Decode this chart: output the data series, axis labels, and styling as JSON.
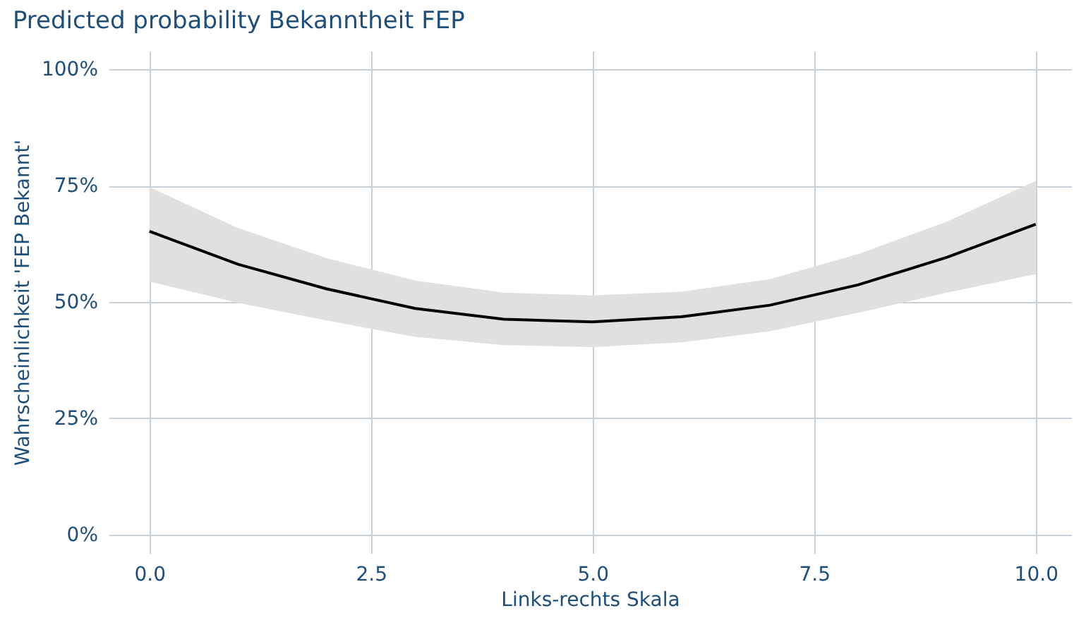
{
  "chart_data": {
    "type": "line",
    "title": "Predicted probability Bekanntheit FEP",
    "xlabel": "Links-rechts Skala",
    "ylabel": "Wahrscheinlichkeit 'FEP Bekannt'",
    "x": [
      0,
      1,
      2,
      3,
      4,
      5,
      6,
      7,
      8,
      9,
      10
    ],
    "series": [
      {
        "color": "#000000",
        "values": [
          65.2,
          58.1,
          52.8,
          48.6,
          46.3,
          45.7,
          46.8,
          49.3,
          53.7,
          59.6,
          66.7
        ],
        "lower": [
          54.4,
          49.8,
          46.0,
          42.5,
          40.7,
          40.3,
          41.3,
          43.7,
          47.7,
          52.0,
          56.0
        ],
        "upper": [
          74.7,
          65.9,
          59.4,
          54.6,
          52.0,
          51.4,
          52.2,
          54.9,
          60.3,
          67.3,
          76.0
        ]
      }
    ],
    "xlim": [
      -0.46,
      10.4
    ],
    "ylim": [
      -4,
      104
    ],
    "xticks": [
      {
        "value": 0,
        "label": "0.0"
      },
      2.5,
      {
        "value": 5,
        "label": "5.0"
      },
      7.5,
      {
        "value": 10,
        "label": "10.0"
      }
    ],
    "yticks": [
      {
        "value": 0,
        "label": "0%"
      },
      {
        "value": 25,
        "label": "25%"
      },
      {
        "value": 50,
        "label": "50%"
      },
      {
        "value": 75,
        "label": "75%"
      },
      {
        "value": 100,
        "label": "100%"
      }
    ],
    "grid": true,
    "line_style": "solid",
    "marker": "none"
  }
}
